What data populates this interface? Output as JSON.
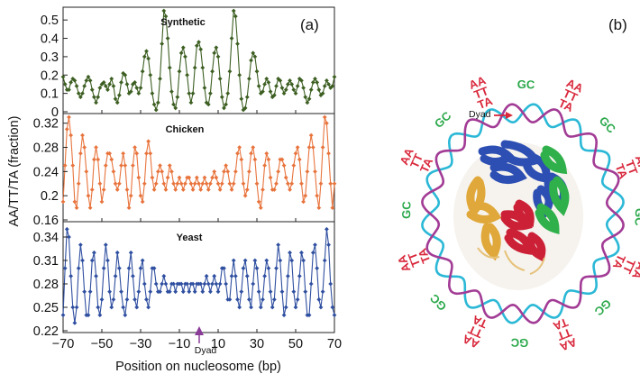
{
  "figure": {
    "panel_a_label": "(a)",
    "panel_b_label": "(b)",
    "ylabel": "AA/TT/TA (fraction)",
    "xlabel": "Position on nucleosome (bp)",
    "dyad_label": "Dyad",
    "x_ticks": [
      "−70",
      "−50",
      "−30",
      "−10",
      "10",
      "30",
      "50",
      "70"
    ],
    "colors": {
      "synthetic": "#3d5f22",
      "chicken": "#e8743d",
      "yeast": "#2f4fa0",
      "dyad_marker": "#8a3c98"
    }
  },
  "chart_data": [
    {
      "type": "line",
      "title": "Synthetic",
      "xlim": [
        -70,
        70
      ],
      "ylim": [
        0,
        0.55
      ],
      "y_ticks": [
        "0",
        "0.1",
        "0.2",
        "0.3",
        "0.4",
        "0.5"
      ],
      "x": [
        -70,
        -69,
        -68,
        -67,
        -66,
        -65,
        -64,
        -63,
        -62,
        -61,
        -60,
        -59,
        -58,
        -57,
        -56,
        -55,
        -54,
        -53,
        -52,
        -51,
        -50,
        -49,
        -48,
        -47,
        -46,
        -45,
        -44,
        -43,
        -42,
        -41,
        -40,
        -39,
        -38,
        -37,
        -36,
        -35,
        -34,
        -33,
        -32,
        -31,
        -30,
        -29,
        -28,
        -27,
        -26,
        -25,
        -24,
        -23,
        -22,
        -21,
        -20,
        -19,
        -18,
        -17,
        -16,
        -15,
        -14,
        -13,
        -12,
        -11,
        -10,
        -9,
        -8,
        -7,
        -6,
        -5,
        -4,
        -3,
        -2,
        -1,
        0,
        1,
        2,
        3,
        4,
        5,
        6,
        7,
        8,
        9,
        10,
        11,
        12,
        13,
        14,
        15,
        16,
        17,
        18,
        19,
        20,
        21,
        22,
        23,
        24,
        25,
        26,
        27,
        28,
        29,
        30,
        31,
        32,
        33,
        34,
        35,
        36,
        37,
        38,
        39,
        40,
        41,
        42,
        43,
        44,
        45,
        46,
        47,
        48,
        49,
        50,
        51,
        52,
        53,
        54,
        55,
        56,
        57,
        58,
        59,
        60,
        61,
        62,
        63,
        64,
        65,
        66,
        67,
        68,
        69,
        70
      ],
      "values": [
        0.19,
        0.15,
        0.12,
        0.12,
        0.16,
        0.18,
        0.17,
        0.14,
        0.1,
        0.08,
        0.1,
        0.14,
        0.17,
        0.19,
        0.17,
        0.12,
        0.08,
        0.05,
        0.08,
        0.13,
        0.15,
        0.16,
        0.14,
        0.12,
        0.15,
        0.18,
        0.14,
        0.07,
        0.05,
        0.09,
        0.16,
        0.21,
        0.2,
        0.15,
        0.1,
        0.11,
        0.15,
        0.16,
        0.13,
        0.1,
        0.13,
        0.22,
        0.3,
        0.33,
        0.29,
        0.2,
        0.1,
        0.04,
        0.01,
        0.05,
        0.18,
        0.37,
        0.55,
        0.52,
        0.4,
        0.24,
        0.11,
        0.04,
        0.02,
        0.08,
        0.22,
        0.32,
        0.35,
        0.3,
        0.2,
        0.1,
        0.05,
        0.1,
        0.24,
        0.36,
        0.38,
        0.34,
        0.24,
        0.13,
        0.05,
        0.04,
        0.1,
        0.22,
        0.32,
        0.35,
        0.3,
        0.18,
        0.08,
        0.02,
        0.04,
        0.1,
        0.22,
        0.4,
        0.55,
        0.52,
        0.37,
        0.2,
        0.07,
        0.01,
        0.02,
        0.08,
        0.18,
        0.28,
        0.32,
        0.3,
        0.22,
        0.14,
        0.1,
        0.11,
        0.15,
        0.18,
        0.16,
        0.11,
        0.08,
        0.09,
        0.14,
        0.18,
        0.17,
        0.13,
        0.1,
        0.12,
        0.15,
        0.17,
        0.15,
        0.12,
        0.1,
        0.14,
        0.18,
        0.17,
        0.13,
        0.08,
        0.05,
        0.07,
        0.12,
        0.16,
        0.18,
        0.16,
        0.12,
        0.09,
        0.1,
        0.14,
        0.17,
        0.15,
        0.13,
        0.14,
        0.19
      ]
    },
    {
      "type": "line",
      "title": "Chicken",
      "xlim": [
        -70,
        70
      ],
      "ylim": [
        0.16,
        0.33
      ],
      "y_ticks": [
        "0.16",
        "0.2",
        "0.24",
        "0.28",
        "0.32"
      ],
      "x": [
        -70,
        -69,
        -68,
        -67,
        -66,
        -65,
        -64,
        -63,
        -62,
        -61,
        -60,
        -59,
        -58,
        -57,
        -56,
        -55,
        -54,
        -53,
        -52,
        -51,
        -50,
        -49,
        -48,
        -47,
        -46,
        -45,
        -44,
        -43,
        -42,
        -41,
        -40,
        -39,
        -38,
        -37,
        -36,
        -35,
        -34,
        -33,
        -32,
        -31,
        -30,
        -29,
        -28,
        -27,
        -26,
        -25,
        -24,
        -23,
        -22,
        -21,
        -20,
        -19,
        -18,
        -17,
        -16,
        -15,
        -14,
        -13,
        -12,
        -11,
        -10,
        -9,
        -8,
        -7,
        -6,
        -5,
        -4,
        -3,
        -2,
        -1,
        0,
        1,
        2,
        3,
        4,
        5,
        6,
        7,
        8,
        9,
        10,
        11,
        12,
        13,
        14,
        15,
        16,
        17,
        18,
        19,
        20,
        21,
        22,
        23,
        24,
        25,
        26,
        27,
        28,
        29,
        30,
        31,
        32,
        33,
        34,
        35,
        36,
        37,
        38,
        39,
        40,
        41,
        42,
        43,
        44,
        45,
        46,
        47,
        48,
        49,
        50,
        51,
        52,
        53,
        54,
        55,
        56,
        57,
        58,
        59,
        60,
        61,
        62,
        63,
        64,
        65,
        66,
        67,
        68,
        69,
        70
      ],
      "values": [
        0.19,
        0.25,
        0.31,
        0.33,
        0.3,
        0.25,
        0.19,
        0.18,
        0.22,
        0.27,
        0.3,
        0.28,
        0.24,
        0.2,
        0.18,
        0.21,
        0.26,
        0.28,
        0.26,
        0.22,
        0.19,
        0.21,
        0.25,
        0.27,
        0.27,
        0.26,
        0.24,
        0.22,
        0.21,
        0.22,
        0.25,
        0.27,
        0.25,
        0.21,
        0.18,
        0.2,
        0.25,
        0.28,
        0.27,
        0.23,
        0.2,
        0.19,
        0.22,
        0.27,
        0.29,
        0.27,
        0.23,
        0.21,
        0.22,
        0.24,
        0.25,
        0.24,
        0.22,
        0.21,
        0.23,
        0.25,
        0.24,
        0.22,
        0.21,
        0.22,
        0.23,
        0.22,
        0.21,
        0.22,
        0.23,
        0.23,
        0.22,
        0.21,
        0.22,
        0.23,
        0.22,
        0.21,
        0.22,
        0.23,
        0.22,
        0.21,
        0.22,
        0.23,
        0.24,
        0.23,
        0.22,
        0.21,
        0.22,
        0.24,
        0.25,
        0.24,
        0.22,
        0.21,
        0.22,
        0.24,
        0.27,
        0.28,
        0.26,
        0.22,
        0.2,
        0.21,
        0.24,
        0.27,
        0.28,
        0.26,
        0.22,
        0.19,
        0.18,
        0.21,
        0.25,
        0.27,
        0.26,
        0.23,
        0.21,
        0.21,
        0.22,
        0.24,
        0.26,
        0.26,
        0.25,
        0.23,
        0.22,
        0.21,
        0.22,
        0.25,
        0.27,
        0.28,
        0.26,
        0.22,
        0.19,
        0.2,
        0.24,
        0.28,
        0.3,
        0.28,
        0.24,
        0.2,
        0.18,
        0.22,
        0.28,
        0.33,
        0.32,
        0.27,
        0.22,
        0.18,
        0.22
      ]
    },
    {
      "type": "line",
      "title": "Yeast",
      "xlim": [
        -70,
        70
      ],
      "ylim": [
        0.22,
        0.355
      ],
      "y_ticks": [
        "0.22",
        "0.25",
        "0.28",
        "0.31",
        "0.34"
      ],
      "x": [
        -70,
        -69,
        -68,
        -67,
        -66,
        -65,
        -64,
        -63,
        -62,
        -61,
        -60,
        -59,
        -58,
        -57,
        -56,
        -55,
        -54,
        -53,
        -52,
        -51,
        -50,
        -49,
        -48,
        -47,
        -46,
        -45,
        -44,
        -43,
        -42,
        -41,
        -40,
        -39,
        -38,
        -37,
        -36,
        -35,
        -34,
        -33,
        -32,
        -31,
        -30,
        -29,
        -28,
        -27,
        -26,
        -25,
        -24,
        -23,
        -22,
        -21,
        -20,
        -19,
        -18,
        -17,
        -16,
        -15,
        -14,
        -13,
        -12,
        -11,
        -10,
        -9,
        -8,
        -7,
        -6,
        -5,
        -4,
        -3,
        -2,
        -1,
        0,
        1,
        2,
        3,
        4,
        5,
        6,
        7,
        8,
        9,
        10,
        11,
        12,
        13,
        14,
        15,
        16,
        17,
        18,
        19,
        20,
        21,
        22,
        23,
        24,
        25,
        26,
        27,
        28,
        29,
        30,
        31,
        32,
        33,
        34,
        35,
        36,
        37,
        38,
        39,
        40,
        41,
        42,
        43,
        44,
        45,
        46,
        47,
        48,
        49,
        50,
        51,
        52,
        53,
        54,
        55,
        56,
        57,
        58,
        59,
        60,
        61,
        62,
        63,
        64,
        65,
        66,
        67,
        68,
        69,
        70
      ],
      "values": [
        0.24,
        0.3,
        0.35,
        0.34,
        0.29,
        0.25,
        0.23,
        0.25,
        0.3,
        0.33,
        0.31,
        0.27,
        0.24,
        0.24,
        0.27,
        0.31,
        0.32,
        0.29,
        0.25,
        0.24,
        0.26,
        0.3,
        0.33,
        0.31,
        0.27,
        0.25,
        0.26,
        0.29,
        0.32,
        0.3,
        0.27,
        0.25,
        0.24,
        0.26,
        0.3,
        0.32,
        0.29,
        0.26,
        0.25,
        0.27,
        0.3,
        0.31,
        0.28,
        0.26,
        0.25,
        0.27,
        0.3,
        0.3,
        0.28,
        0.27,
        0.27,
        0.28,
        0.29,
        0.28,
        0.27,
        0.27,
        0.28,
        0.28,
        0.27,
        0.28,
        0.28,
        0.28,
        0.27,
        0.28,
        0.28,
        0.27,
        0.28,
        0.28,
        0.27,
        0.28,
        0.28,
        0.28,
        0.27,
        0.28,
        0.29,
        0.28,
        0.27,
        0.28,
        0.29,
        0.28,
        0.27,
        0.28,
        0.3,
        0.3,
        0.28,
        0.26,
        0.26,
        0.29,
        0.31,
        0.29,
        0.26,
        0.25,
        0.27,
        0.3,
        0.31,
        0.29,
        0.26,
        0.25,
        0.28,
        0.31,
        0.3,
        0.27,
        0.25,
        0.26,
        0.29,
        0.31,
        0.3,
        0.27,
        0.25,
        0.26,
        0.3,
        0.33,
        0.31,
        0.27,
        0.24,
        0.25,
        0.29,
        0.32,
        0.31,
        0.27,
        0.25,
        0.26,
        0.29,
        0.32,
        0.31,
        0.27,
        0.24,
        0.24,
        0.28,
        0.32,
        0.33,
        0.3,
        0.26,
        0.25,
        0.27,
        0.31,
        0.35,
        0.33,
        0.28,
        0.25,
        0.24
      ]
    }
  ],
  "diagram": {
    "dyad_label": "Dyad",
    "sequence_labels": [
      {
        "lines": [
          "AA",
          "TT",
          "TA"
        ],
        "color": "#d9283c"
      },
      {
        "lines": [
          "GC"
        ],
        "color": "#2aa84a"
      },
      {
        "lines": [
          "AA",
          "TT",
          "TA"
        ],
        "color": "#d9283c"
      },
      {
        "lines": [
          "GC"
        ],
        "color": "#2aa84a"
      },
      {
        "lines": [
          "AA",
          "TT",
          "TA"
        ],
        "color": "#d9283c"
      },
      {
        "lines": [
          "GC"
        ],
        "color": "#2aa84a"
      },
      {
        "lines": [
          "AA",
          "TT",
          "TA"
        ],
        "color": "#d9283c"
      },
      {
        "lines": [
          "GC"
        ],
        "color": "#2aa84a"
      },
      {
        "lines": [
          "AA",
          "TT",
          "TA"
        ],
        "color": "#d9283c"
      },
      {
        "lines": [
          "GC"
        ],
        "color": "#2aa84a"
      },
      {
        "lines": [
          "AA",
          "TT",
          "TA"
        ],
        "color": "#d9283c"
      },
      {
        "lines": [
          "GC"
        ],
        "color": "#2aa84a"
      },
      {
        "lines": [
          "AA",
          "TT",
          "TA"
        ],
        "color": "#d9283c"
      },
      {
        "lines": [
          "GC"
        ],
        "color": "#2aa84a"
      },
      {
        "lines": [
          "AA",
          "TT",
          "TA"
        ],
        "color": "#d9283c"
      },
      {
        "lines": [
          "GC"
        ],
        "color": "#2aa84a"
      }
    ],
    "colors": {
      "dna_strand_1": "#2bb8d6",
      "dna_strand_2": "#a23b95",
      "protein_blue": "#2d4fb3",
      "protein_gold": "#e0a83a",
      "protein_red": "#cc2036",
      "protein_green": "#2fb04a",
      "arrow": "#d9283c"
    }
  }
}
